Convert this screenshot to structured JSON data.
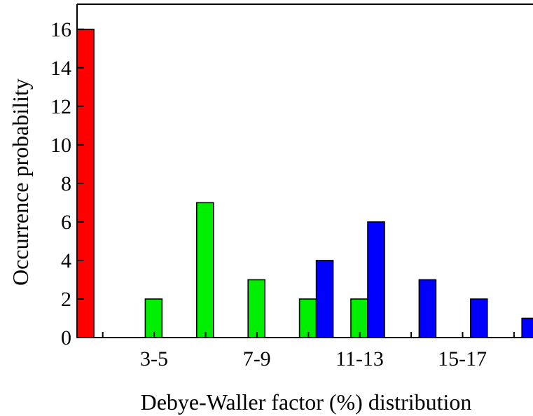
{
  "chart_data": {
    "type": "bar",
    "title": "",
    "xlabel": "Debye-Waller factor (%) distribution",
    "ylabel": "Occurrence probability",
    "ylim": [
      0,
      17.3
    ],
    "yticks": [
      0,
      2,
      4,
      6,
      8,
      10,
      12,
      14,
      16
    ],
    "grid": false,
    "legend": "none",
    "x_tick_labels": [
      "3-5",
      "7-9",
      "11-13",
      "15-17"
    ],
    "group_count": 10,
    "series": [
      {
        "color": "#ff0000",
        "groups": [
          0
        ],
        "values": [
          16
        ]
      },
      {
        "color": "#00ee00",
        "groups": [
          1,
          2,
          3,
          4,
          5
        ],
        "values": [
          2,
          7,
          3,
          2,
          2
        ]
      },
      {
        "color": "#0000ff",
        "groups": [
          4,
          5,
          6,
          7,
          8
        ],
        "values": [
          4,
          6,
          3,
          2,
          1
        ]
      }
    ]
  }
}
